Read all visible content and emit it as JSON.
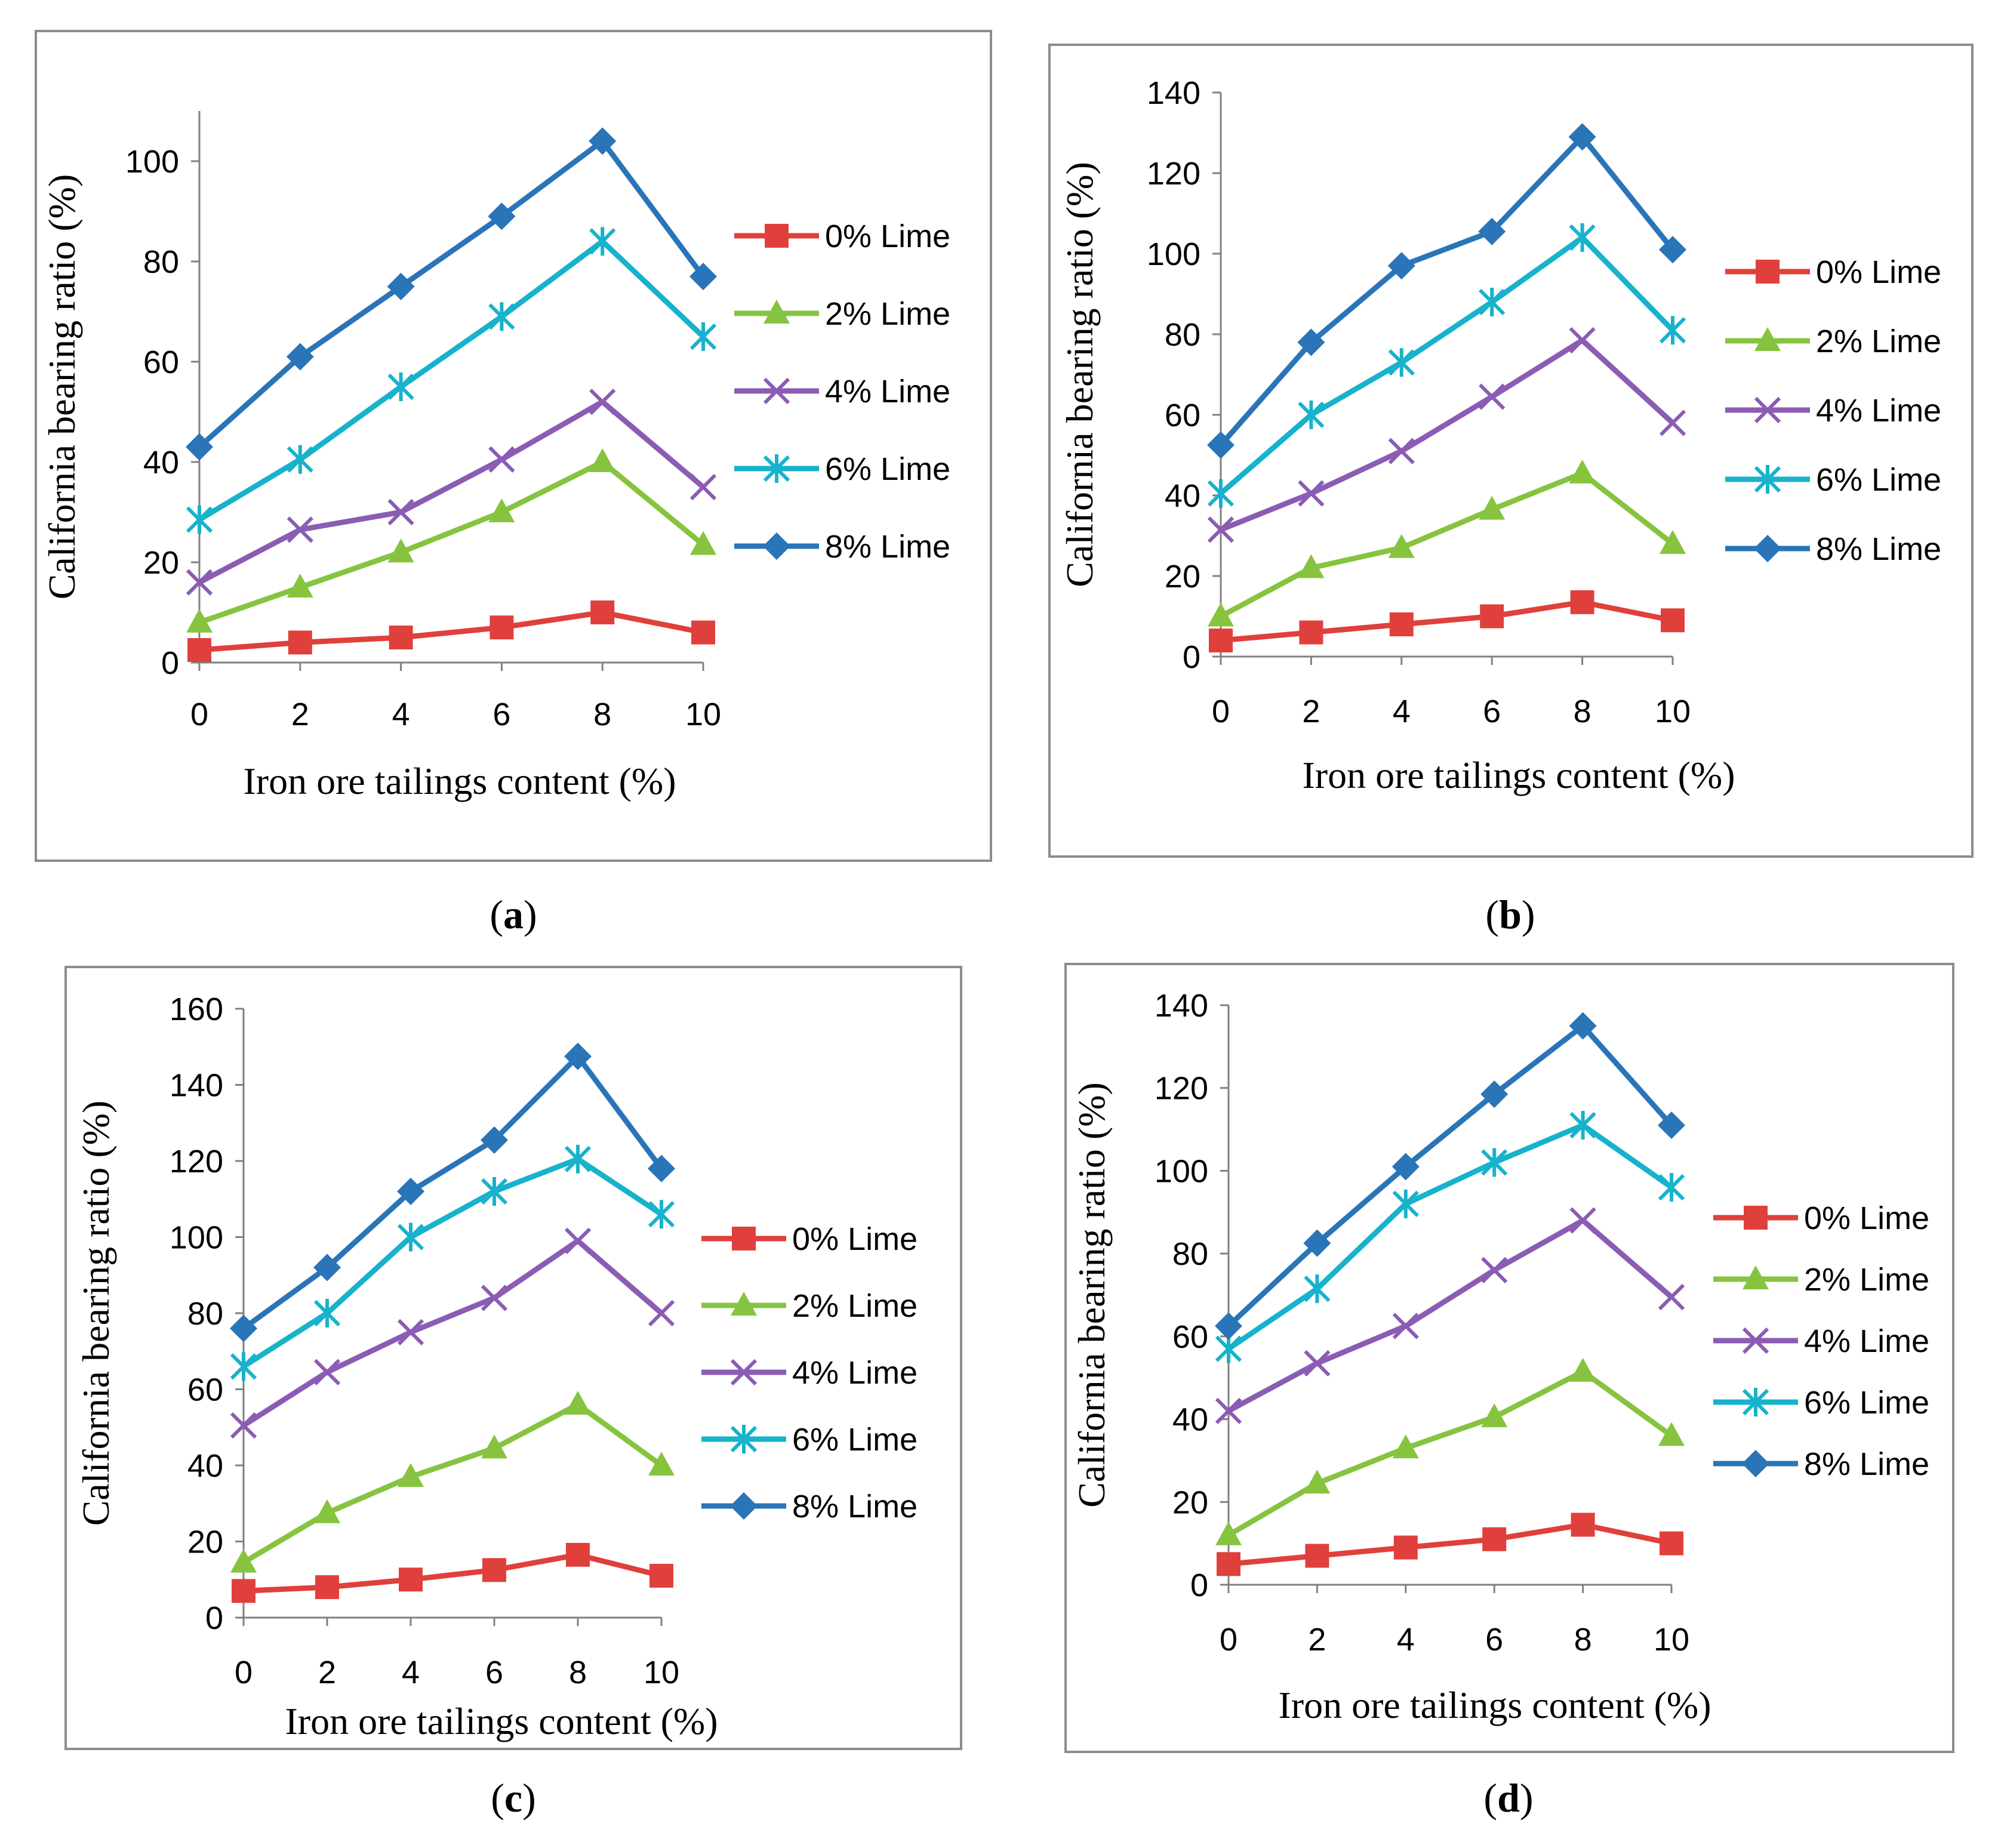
{
  "colors": {
    "0% Lime": "#e0403b",
    "2% Lime": "#86c440",
    "4% Lime": "#8b5cb4",
    "6% Lime": "#17b2cc",
    "8% Lime": "#2a74b8"
  },
  "chart_data": [
    {
      "id": "a",
      "caption": "a",
      "type": "line",
      "xlabel": "Iron ore tailings content (%)",
      "ylabel": "California bearing ratio (%)",
      "x": [
        0,
        2,
        4,
        6,
        8,
        10
      ],
      "xlim": [
        0,
        10
      ],
      "ylim": [
        0,
        110
      ],
      "yticks": [
        0,
        20,
        40,
        60,
        80,
        100
      ],
      "legend_position": "right",
      "series": [
        {
          "name": "0% Lime",
          "marker": "square",
          "values": [
            2.5,
            4,
            5,
            7,
            10,
            6
          ]
        },
        {
          "name": "2% Lime",
          "marker": "triangle",
          "values": [
            8,
            15,
            22,
            30,
            40,
            23.5
          ]
        },
        {
          "name": "4% Lime",
          "marker": "x",
          "values": [
            16,
            26.5,
            30,
            40.5,
            52,
            35
          ]
        },
        {
          "name": "6% Lime",
          "marker": "asterisk",
          "values": [
            28.5,
            40.5,
            55,
            69,
            84,
            65
          ]
        },
        {
          "name": "8% Lime",
          "marker": "diamond",
          "values": [
            43,
            61,
            75,
            89,
            104,
            77
          ]
        }
      ]
    },
    {
      "id": "b",
      "caption": "b",
      "type": "line",
      "xlabel": "Iron ore tailings content (%)",
      "ylabel": "California bearing ratio (%)",
      "x": [
        0,
        2,
        4,
        6,
        8,
        10
      ],
      "xlim": [
        0,
        10
      ],
      "ylim": [
        0,
        140
      ],
      "yticks": [
        0,
        20,
        40,
        60,
        80,
        100,
        120,
        140
      ],
      "legend_position": "right",
      "series": [
        {
          "name": "0% Lime",
          "marker": "square",
          "values": [
            4,
            6,
            8,
            10,
            13.5,
            9
          ]
        },
        {
          "name": "2% Lime",
          "marker": "triangle",
          "values": [
            10,
            22,
            27,
            36.5,
            45.5,
            28
          ]
        },
        {
          "name": "4% Lime",
          "marker": "x",
          "values": [
            31.5,
            40.5,
            51,
            64.5,
            78.5,
            58
          ]
        },
        {
          "name": "6% Lime",
          "marker": "asterisk",
          "values": [
            40.5,
            60,
            73,
            88,
            104,
            81
          ]
        },
        {
          "name": "8% Lime",
          "marker": "diamond",
          "values": [
            52.5,
            78,
            97,
            105.5,
            129,
            101
          ]
        }
      ]
    },
    {
      "id": "c",
      "caption": "c",
      "type": "line",
      "xlabel": "Iron ore tailings content (%)",
      "ylabel": "California bearing ratio (%)",
      "x": [
        0,
        2,
        4,
        6,
        8,
        10
      ],
      "xlim": [
        0,
        10
      ],
      "ylim": [
        0,
        160
      ],
      "yticks": [
        0,
        20,
        40,
        60,
        80,
        100,
        120,
        140,
        160
      ],
      "legend_position": "right",
      "series": [
        {
          "name": "0% Lime",
          "marker": "square",
          "values": [
            7,
            8,
            10,
            12.5,
            16.5,
            11
          ]
        },
        {
          "name": "2% Lime",
          "marker": "triangle",
          "values": [
            14.5,
            27.5,
            37,
            44.5,
            56,
            40
          ]
        },
        {
          "name": "4% Lime",
          "marker": "x",
          "values": [
            50.5,
            64.5,
            75,
            84,
            99,
            80
          ]
        },
        {
          "name": "6% Lime",
          "marker": "asterisk",
          "values": [
            66,
            80,
            100,
            112,
            120.5,
            106
          ]
        },
        {
          "name": "8% Lime",
          "marker": "diamond",
          "values": [
            76,
            92,
            112,
            125.5,
            147.5,
            118
          ]
        }
      ]
    },
    {
      "id": "d",
      "caption": "d",
      "type": "line",
      "xlabel": "Iron ore tailings content (%)",
      "ylabel": "California bearing ratio (%)",
      "x": [
        0,
        2,
        4,
        6,
        8,
        10
      ],
      "xlim": [
        0,
        10
      ],
      "ylim": [
        0,
        140
      ],
      "yticks": [
        0,
        20,
        40,
        60,
        80,
        100,
        120,
        140
      ],
      "legend_position": "right",
      "series": [
        {
          "name": "0% Lime",
          "marker": "square",
          "values": [
            5,
            7,
            9,
            11,
            14.5,
            10
          ]
        },
        {
          "name": "2% Lime",
          "marker": "triangle",
          "values": [
            12,
            24.5,
            33,
            40.5,
            51.5,
            36
          ]
        },
        {
          "name": "4% Lime",
          "marker": "x",
          "values": [
            42,
            53.5,
            62.5,
            76,
            88,
            69.5
          ]
        },
        {
          "name": "6% Lime",
          "marker": "asterisk",
          "values": [
            57,
            71.5,
            92,
            102,
            111,
            96
          ]
        },
        {
          "name": "8% Lime",
          "marker": "diamond",
          "values": [
            62.5,
            82.5,
            101,
            118.5,
            135,
            111
          ]
        }
      ]
    }
  ]
}
